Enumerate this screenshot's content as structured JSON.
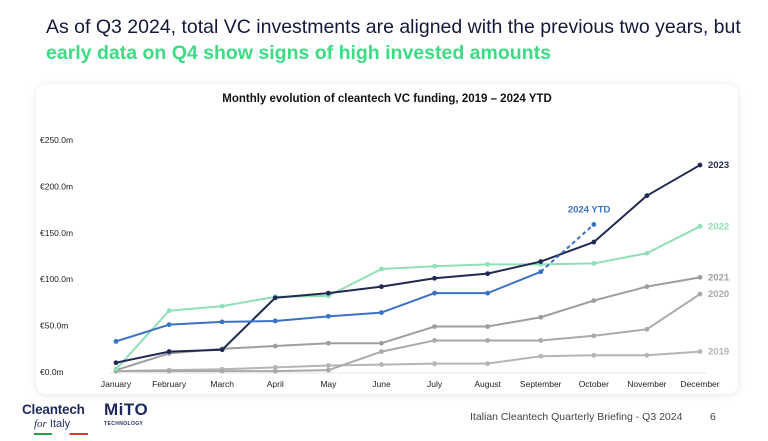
{
  "headline": {
    "plain": "As of Q3 2024, total VC investments are aligned with the previous two years, but ",
    "accent": "early data on Q4 show signs of high invested amounts"
  },
  "chart_data": {
    "type": "line",
    "title": "Monthly evolution of cleantech VC funding, 2019 – 2024 YTD",
    "categories": [
      "January",
      "February",
      "March",
      "April",
      "May",
      "June",
      "July",
      "August",
      "September",
      "October",
      "November",
      "December"
    ],
    "ylim": [
      0,
      250
    ],
    "yticks": [
      0,
      50,
      100,
      150,
      200,
      250
    ],
    "ytick_labels": [
      "€0.0m",
      "€50.0m",
      "€100.0m",
      "€150.0m",
      "€200.0m",
      "€250.0m"
    ],
    "series": [
      {
        "name": "2019",
        "color": "#b5b5b5",
        "values": [
          1,
          2,
          3,
          5,
          7,
          8,
          9,
          9,
          17,
          18,
          18,
          22
        ]
      },
      {
        "name": "2020",
        "color": "#a9a9a9",
        "values": [
          1,
          1,
          1,
          1,
          2,
          22,
          34,
          34,
          34,
          39,
          46,
          84
        ]
      },
      {
        "name": "2021",
        "color": "#9e9e9e",
        "values": [
          2,
          20,
          25,
          28,
          31,
          31,
          49,
          49,
          59,
          77,
          92,
          102
        ]
      },
      {
        "name": "2022",
        "color": "#8fe0b4",
        "values": [
          3,
          66,
          71,
          81,
          82,
          111,
          114,
          116,
          116,
          117,
          128,
          157
        ]
      },
      {
        "name": "2023",
        "color": "#1f2a52",
        "values": [
          10,
          22,
          24,
          80,
          85,
          92,
          101,
          106,
          119,
          140,
          190,
          223
        ]
      },
      {
        "name": "2024 YTD",
        "color": "#3a72c4",
        "values": [
          33,
          51,
          54,
          55,
          60,
          64,
          85,
          85,
          108,
          null,
          null,
          null
        ],
        "projection": {
          "from_index": 8,
          "to_index": 9,
          "value": 159
        }
      }
    ]
  },
  "footer": {
    "brand_line1": "Cleantech",
    "brand_line2_italic": "for",
    "brand_line2_rest": " Italy",
    "mito": "MiTO",
    "mito_sub": "TECHNOLOGY",
    "caption": "Italian Cleantech Quarterly Briefing - Q3 2024",
    "page": "6"
  }
}
